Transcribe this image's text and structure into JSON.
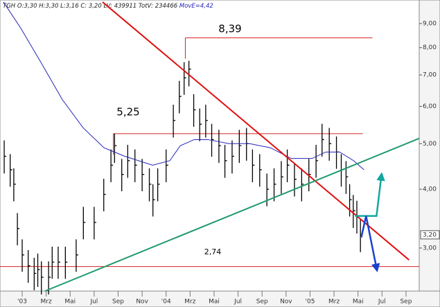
{
  "chart_data": {
    "type": "ohlc",
    "header": "TGH O:3,30 H:3,30 L:3,16 C: 3,20 LV: 439911 TotV: 234466",
    "ma_label": "MovE=4,42",
    "x": [
      -1.5,
      -1,
      -0.7,
      -0.4,
      0,
      0.5,
      1,
      1.3,
      1.6,
      2.2,
      2.5,
      3,
      3.6,
      4.5,
      5.1,
      6,
      6.8,
      7.4,
      7.7,
      8.3,
      8.8,
      9.4,
      10,
      10.6,
      10.9,
      11.3,
      12,
      12.6,
      13.1,
      13.5,
      13.9,
      14.3,
      14.8,
      15.3,
      15.8,
      16.4,
      16.9,
      17.5,
      18.1,
      18.7,
      19.2,
      19.8,
      20.4,
      21,
      21.6,
      22.1,
      22.7,
      23.3,
      23.9,
      24.5,
      25,
      25.6,
      26.2,
      26.6,
      27,
      27.3,
      27.6,
      27.9,
      28.2
    ],
    "high": [
      5.08,
      4.75,
      4.43,
      3.56,
      3.13,
      2.97,
      2.86,
      2.92,
      2.81,
      2.81,
      3.02,
      3.02,
      3.02,
      3.13,
      3.67,
      3.67,
      4.21,
      4.86,
      5.25,
      4.64,
      4.97,
      4.86,
      4.64,
      4.43,
      4.1,
      4.43,
      4.86,
      6.05,
      6.8,
      7.45,
      7.5,
      6.37,
      5.94,
      6.05,
      5.51,
      5.35,
      4.97,
      5.08,
      5.35,
      5.4,
      4.86,
      4.75,
      4.32,
      4.43,
      4.59,
      4.86,
      4.54,
      4.43,
      4.64,
      4.97,
      5.51,
      5.4,
      5.18,
      4.75,
      4.59,
      4.1,
      3.89,
      3.78,
      3.46
    ],
    "low": [
      4.32,
      4.05,
      3.77,
      3.04,
      2.67,
      2.53,
      2.44,
      2.48,
      2.39,
      2.39,
      2.58,
      2.58,
      2.58,
      2.67,
      3.13,
      3.13,
      3.59,
      4.14,
      4.55,
      3.96,
      4.23,
      4.14,
      3.96,
      3.77,
      3.5,
      3.77,
      4.14,
      5.15,
      5.8,
      6.35,
      6.62,
      5.43,
      5.06,
      5.15,
      4.69,
      4.55,
      4.23,
      4.32,
      4.55,
      4.6,
      4.14,
      4.05,
      3.68,
      3.77,
      3.91,
      4.14,
      3.86,
      3.77,
      3.96,
      4.23,
      4.69,
      4.6,
      4.42,
      4.05,
      3.91,
      3.5,
      3.31,
      3.22,
      2.94
    ],
    "close": [
      4.7,
      4.4,
      4.1,
      3.3,
      2.9,
      2.75,
      2.65,
      2.7,
      2.6,
      2.6,
      2.8,
      2.8,
      2.8,
      2.9,
      3.4,
      3.4,
      3.9,
      4.5,
      4.95,
      4.3,
      4.6,
      4.5,
      4.3,
      4.1,
      3.8,
      4.1,
      4.5,
      5.6,
      6.3,
      6.9,
      7.2,
      5.9,
      5.5,
      5.6,
      5.1,
      4.95,
      4.6,
      4.7,
      4.95,
      5.0,
      4.5,
      4.4,
      4.0,
      4.1,
      4.25,
      4.5,
      4.2,
      4.1,
      4.3,
      4.6,
      5.1,
      5.0,
      4.8,
      4.4,
      4.25,
      3.8,
      3.6,
      3.5,
      3.2
    ],
    "color": "#000000",
    "moving_average": {
      "color": "#2424b8",
      "x": [
        -1.56,
        -0.12,
        1.62,
        3.35,
        5.09,
        6.82,
        8.55,
        10.87,
        12.31,
        13.18,
        14.34,
        15.49,
        17.23,
        18.96,
        20.69,
        22.43,
        24.16,
        25.32,
        26.47,
        27.63,
        28.5
      ],
      "values": [
        10.0,
        8.8,
        7.4,
        6.2,
        5.4,
        4.9,
        4.7,
        4.5,
        4.6,
        4.95,
        5.1,
        5.1,
        5.0,
        5.0,
        4.9,
        4.65,
        4.65,
        4.8,
        4.8,
        4.6,
        4.4
      ]
    },
    "levels": [
      {
        "label": "8,39",
        "value": 8.39,
        "x": [
          13.6,
          29.2
        ],
        "color": "#d42020"
      },
      {
        "label": "5,25",
        "value": 5.25,
        "x": [
          7.6,
          28.4
        ],
        "color": "#d42020"
      },
      {
        "label": "2,74",
        "value": 2.74,
        "x": [
          -1.85,
          33.1
        ],
        "color": "#d42020"
      }
    ],
    "trendlines": [
      {
        "color": "#e01010",
        "x": [
          6.7,
          32.25
        ],
        "y": [
          10.0,
          2.83
        ]
      },
      {
        "color": "#1f9a6c",
        "x": [
          1.9,
          33.1
        ],
        "y": [
          2.43,
          5.13
        ]
      }
    ],
    "projections": [
      {
        "color": "#10a8a0",
        "x": [
          27.75,
          29.54,
          29.94
        ],
        "y": [
          3.51,
          3.51,
          4.26
        ]
      },
      {
        "color": "#1840d0",
        "x": [
          28.27,
          28.67,
          29.54
        ],
        "y": [
          3.16,
          3.51,
          2.72
        ]
      }
    ],
    "last_price": {
      "value": 3.2,
      "label": "3,20"
    },
    "log_scale": true,
    "xlim": [
      -1.85,
      33.1
    ],
    "ylim": [
      2.43,
      10.1
    ],
    "xticks": [
      {
        "value": 0,
        "label": "'03"
      },
      {
        "value": 2,
        "label": "Mrz"
      },
      {
        "value": 4,
        "label": "Mai"
      },
      {
        "value": 6,
        "label": "Jul"
      },
      {
        "value": 8,
        "label": "Sep"
      },
      {
        "value": 10,
        "label": "Nov"
      },
      {
        "value": 12,
        "label": "'04"
      },
      {
        "value": 14,
        "label": "Mrz"
      },
      {
        "value": 16,
        "label": "Mai"
      },
      {
        "value": 18,
        "label": "Jul"
      },
      {
        "value": 20,
        "label": "Sep"
      },
      {
        "value": 22,
        "label": "Nov"
      },
      {
        "value": 24,
        "label": "'05"
      },
      {
        "value": 26,
        "label": "Mrz"
      },
      {
        "value": 28,
        "label": "Mai"
      },
      {
        "value": 30,
        "label": "Jul"
      },
      {
        "value": 32,
        "label": "Sep"
      }
    ],
    "yticks": [
      {
        "value": 3,
        "label": "3,00"
      },
      {
        "value": 4,
        "label": "4,00"
      },
      {
        "value": 5,
        "label": "5,00"
      },
      {
        "value": 6,
        "label": "6,00"
      },
      {
        "value": 7,
        "label": "7,00"
      },
      {
        "value": 8,
        "label": "8,00"
      },
      {
        "value": 9,
        "label": "9,00"
      }
    ]
  }
}
